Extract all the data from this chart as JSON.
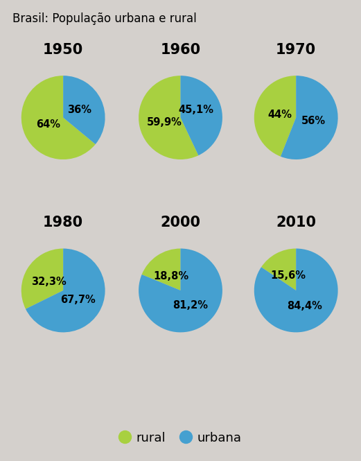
{
  "title": "Brasil: População urbana e rural",
  "title_bg": "#c0bcb8",
  "background_color": "#d4d0cc",
  "rural_color": "#a8d040",
  "urban_color": "#45a0d0",
  "charts": [
    {
      "year": "1950",
      "rural": 64.0,
      "urban": 36.0,
      "rural_label": "64%",
      "urban_label": "36%"
    },
    {
      "year": "1960",
      "rural": 59.9,
      "urban": 45.1,
      "rural_label": "59,9%",
      "urban_label": "45,1%"
    },
    {
      "year": "1970",
      "rural": 44.0,
      "urban": 56.0,
      "rural_label": "44%",
      "urban_label": "56%"
    },
    {
      "year": "1980",
      "rural": 32.3,
      "urban": 67.7,
      "rural_label": "32,3%",
      "urban_label": "67,7%"
    },
    {
      "year": "2000",
      "rural": 18.8,
      "urban": 81.2,
      "rural_label": "18,8%",
      "urban_label": "81,2%"
    },
    {
      "year": "2010",
      "rural": 15.6,
      "urban": 84.4,
      "rural_label": "15,6%",
      "urban_label": "84,4%"
    }
  ],
  "legend_rural": "rural",
  "legend_urban": "urbana",
  "label_fontsize": 10.5,
  "year_fontsize": 15,
  "title_fontsize": 12,
  "r_label": 0.4,
  "r_label_urban": 0.42
}
